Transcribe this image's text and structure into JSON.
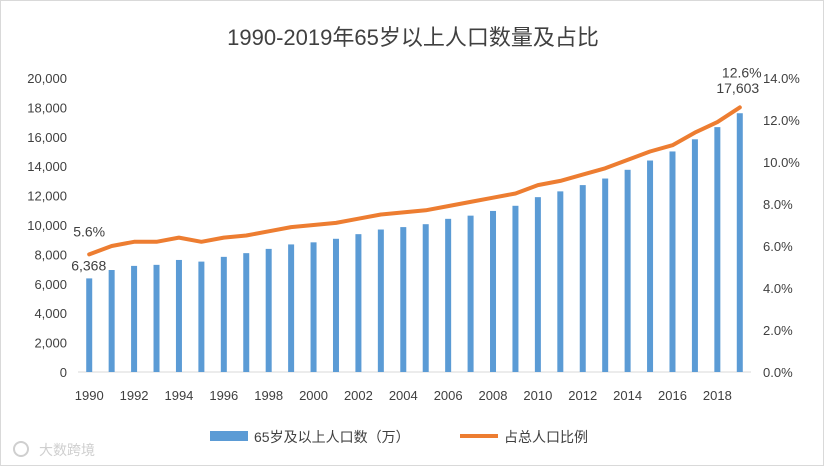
{
  "chart_data": {
    "type": "bar+line",
    "title": "1990-2019年65岁以上人口数量及占比",
    "years": [
      1990,
      1991,
      1992,
      1993,
      1994,
      1995,
      1996,
      1997,
      1998,
      1999,
      2000,
      2001,
      2002,
      2003,
      2004,
      2005,
      2006,
      2007,
      2008,
      2009,
      2010,
      2011,
      2012,
      2013,
      2014,
      2015,
      2016,
      2017,
      2018,
      2019
    ],
    "x_tick_labels": [
      "1990",
      "1992",
      "1994",
      "1996",
      "1998",
      "2000",
      "2002",
      "2004",
      "2006",
      "2008",
      "2010",
      "2012",
      "2014",
      "2016",
      "2018"
    ],
    "series": [
      {
        "name": "65岁及以上人口数（万）",
        "type": "bar",
        "axis": "left",
        "color": "#5b9bd5",
        "values": [
          6368,
          6938,
          7218,
          7289,
          7622,
          7510,
          7833,
          8085,
          8375,
          8679,
          8821,
          9062,
          9377,
          9692,
          9857,
          10055,
          10419,
          10636,
          10956,
          11307,
          11894,
          12288,
          12714,
          13161,
          13755,
          14386,
          15003,
          15831,
          16658,
          17603
        ]
      },
      {
        "name": "占总人口比例",
        "type": "line",
        "axis": "right",
        "color": "#ed7d31",
        "values": [
          5.6,
          6.0,
          6.2,
          6.2,
          6.4,
          6.2,
          6.4,
          6.5,
          6.7,
          6.9,
          7.0,
          7.1,
          7.3,
          7.5,
          7.6,
          7.7,
          7.9,
          8.1,
          8.3,
          8.5,
          8.9,
          9.1,
          9.4,
          9.7,
          10.1,
          10.5,
          10.8,
          11.4,
          11.9,
          12.6
        ]
      }
    ],
    "y_left": {
      "min": 0,
      "max": 20000,
      "step": 2000,
      "tick_labels": [
        "0",
        "2,000",
        "4,000",
        "6,000",
        "8,000",
        "10,000",
        "12,000",
        "14,000",
        "16,000",
        "18,000",
        "20,000"
      ]
    },
    "y_right": {
      "min": 0,
      "max": 14,
      "step": 2,
      "tick_labels": [
        "0.0%",
        "2.0%",
        "4.0%",
        "6.0%",
        "8.0%",
        "10.0%",
        "12.0%",
        "14.0%"
      ]
    },
    "annotations": {
      "first_pct": "5.6%",
      "first_value": "6,368",
      "last_pct": "12.6%",
      "last_value": "17,603"
    },
    "legend": {
      "bar_label": "65岁及以上人口数（万）",
      "line_label": "占总人口比例",
      "placement": "bottom"
    },
    "gridlines": false
  },
  "watermark": "大数跨境"
}
